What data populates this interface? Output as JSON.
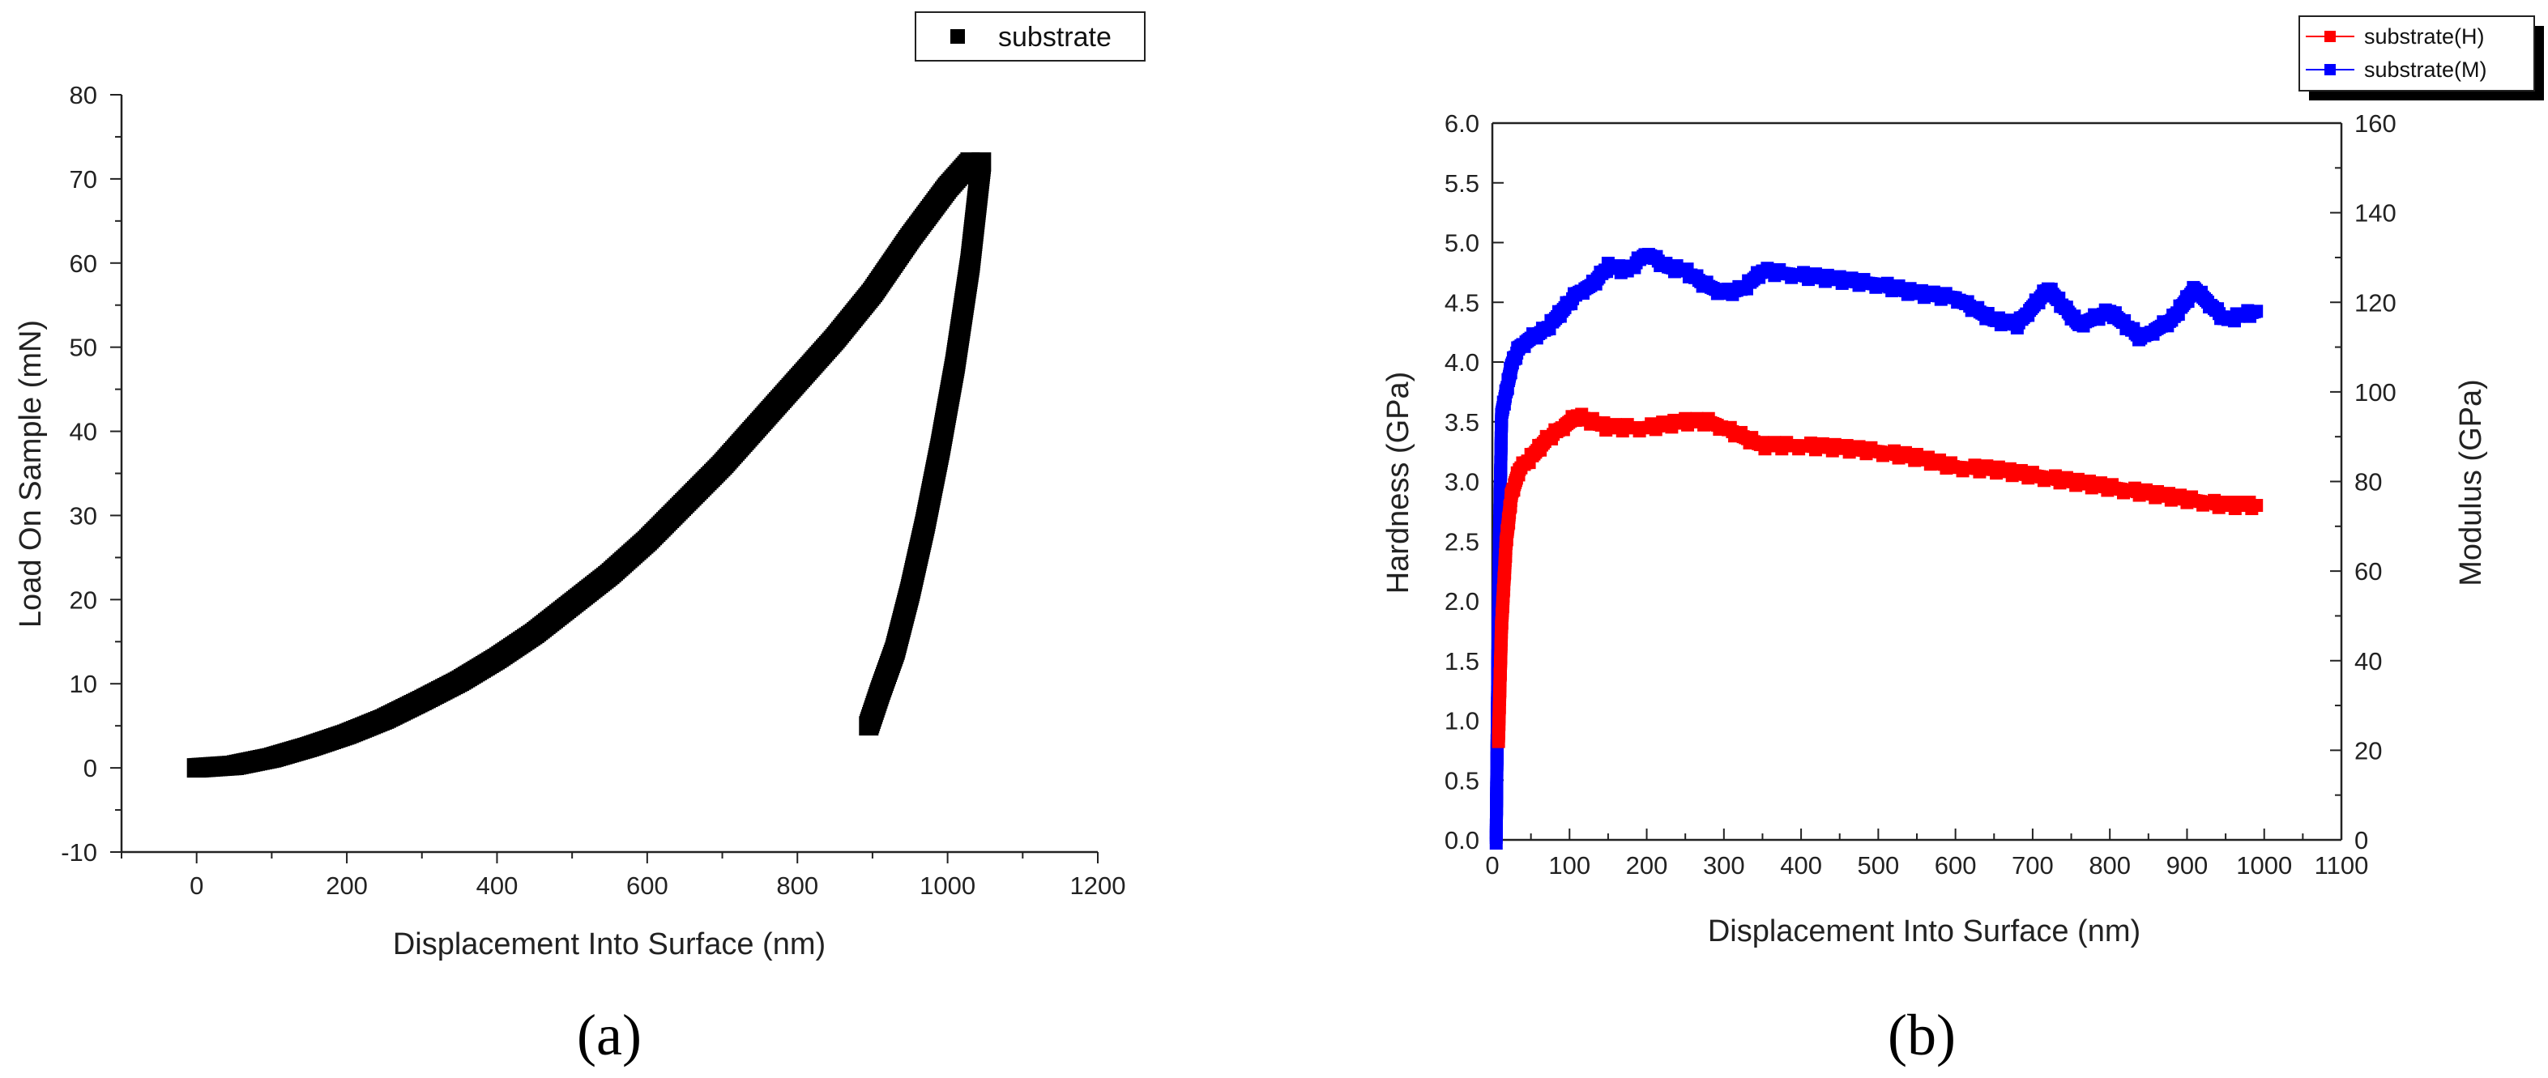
{
  "chart_data": [
    {
      "type": "scatter",
      "panel_label": "(a)",
      "xlabel": "Displacement Into Surface (nm)",
      "ylabel": "Load On Sample (mN)",
      "xlim": [
        -100,
        1200
      ],
      "ylim": [
        -10,
        80
      ],
      "xticks": [
        "0",
        "200",
        "400",
        "600",
        "800",
        "1000",
        "1200"
      ],
      "yticks": [
        "-10",
        "0",
        "10",
        "20",
        "30",
        "40",
        "50",
        "60",
        "70",
        "80"
      ],
      "legend_position": "top-right",
      "series": [
        {
          "name": "substrate",
          "color": "#000000",
          "marker": "square",
          "segments": [
            {
              "x": [
                0,
                50,
                100,
                150,
                200,
                250,
                300,
                350,
                400,
                450,
                500,
                550,
                600,
                650,
                700,
                750,
                800,
                850,
                900,
                950,
                1000,
                1030
              ],
              "y": [
                0,
                0.3,
                1.2,
                2.5,
                4,
                5.8,
                8,
                10.3,
                13,
                16,
                19.5,
                23,
                27,
                31.5,
                36,
                41,
                46,
                51,
                56.5,
                63,
                69,
                72
              ]
            },
            {
              "x": [
                1045,
                1030,
                1010,
                990,
                970,
                950,
                930,
                910,
                895
              ],
              "y": [
                72,
                60,
                48,
                38,
                29,
                21,
                14,
                9,
                5
              ]
            }
          ]
        }
      ]
    },
    {
      "type": "line",
      "panel_label": "(b)",
      "xlabel": "Displacement Into Surface (nm)",
      "ylabel_left": "Hardness (GPa)",
      "ylabel_right": "Modulus (GPa)",
      "xlim": [
        0,
        1100
      ],
      "ylim_left": [
        0,
        6
      ],
      "ylim_right": [
        0,
        160
      ],
      "xticks": [
        "0",
        "100",
        "200",
        "300",
        "400",
        "500",
        "600",
        "700",
        "800",
        "900",
        "1000",
        "1100"
      ],
      "yticks_left": [
        "0.0",
        "0.5",
        "1.0",
        "1.5",
        "2.0",
        "2.5",
        "3.0",
        "3.5",
        "4.0",
        "4.5",
        "5.0",
        "5.5",
        "6.0"
      ],
      "yticks_right": [
        "0",
        "20",
        "40",
        "60",
        "80",
        "100",
        "120",
        "140",
        "160"
      ],
      "legend_position": "top-right",
      "series": [
        {
          "name": "substrate(H)",
          "color": "#ff0000",
          "axis": "left",
          "x": [
            8,
            12,
            18,
            25,
            35,
            50,
            70,
            90,
            110,
            130,
            150,
            200,
            250,
            280,
            300,
            350,
            400,
            450,
            500,
            550,
            600,
            650,
            700,
            750,
            800,
            850,
            900,
            950,
            990
          ],
          "y": [
            0.85,
            1.8,
            2.5,
            2.9,
            3.1,
            3.2,
            3.35,
            3.45,
            3.55,
            3.5,
            3.45,
            3.45,
            3.5,
            3.5,
            3.45,
            3.3,
            3.3,
            3.28,
            3.25,
            3.2,
            3.12,
            3.1,
            3.05,
            3.0,
            2.95,
            2.9,
            2.85,
            2.8,
            2.8
          ]
        },
        {
          "name": "substrate(M)",
          "color": "#0000ff",
          "axis": "right",
          "x": [
            5,
            8,
            12,
            18,
            25,
            35,
            50,
            70,
            90,
            110,
            130,
            150,
            175,
            200,
            225,
            250,
            275,
            300,
            325,
            350,
            400,
            450,
            500,
            550,
            600,
            650,
            680,
            720,
            760,
            800,
            840,
            880,
            910,
            950,
            990
          ],
          "y": [
            0,
            55,
            95,
            100,
            106,
            110,
            112,
            114,
            118,
            122,
            124,
            128,
            127,
            131,
            128,
            127,
            124,
            122,
            123,
            127,
            126,
            125,
            124,
            122,
            121,
            116,
            115,
            123,
            115,
            118,
            112,
            116,
            123,
            116,
            118
          ]
        }
      ]
    }
  ]
}
